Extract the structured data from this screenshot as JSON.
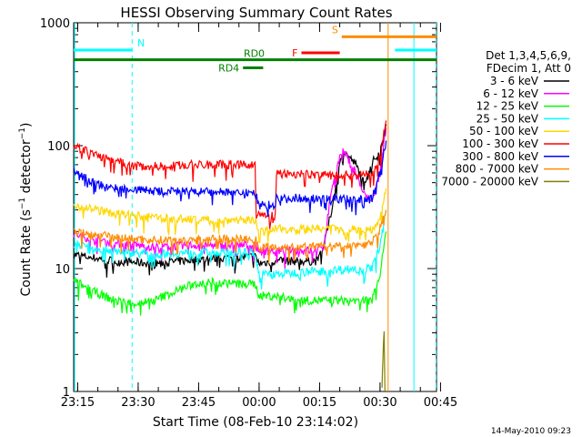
{
  "chart_data": {
    "type": "line",
    "title": "HESSI Observing Summary Count Rates",
    "xlabel": "Start Time (08-Feb-10 23:14:02)",
    "ylabel": "Count Rate (s⁻¹ detector⁻¹)",
    "ylabel_main": "Count Rate (s",
    "ylabel_sup1": "−1",
    "ylabel_mid": " detector",
    "ylabel_sup2": "−1",
    "ylabel_end": ")",
    "yscale": "log",
    "ylim": [
      1,
      1000
    ],
    "xlim_min": [
      0,
      90
    ],
    "x_ticks": [
      {
        "m": 1,
        "label": "23:15"
      },
      {
        "m": 16,
        "label": "23:30"
      },
      {
        "m": 31,
        "label": "23:45"
      },
      {
        "m": 46,
        "label": "00:00"
      },
      {
        "m": 61,
        "label": "00:15"
      },
      {
        "m": 76,
        "label": "00:30"
      },
      {
        "m": 91,
        "label": "00:45"
      }
    ],
    "y_ticks": [
      {
        "v": 1,
        "label": "1"
      },
      {
        "v": 10,
        "label": "10"
      },
      {
        "v": 100,
        "label": "100"
      },
      {
        "v": 1000,
        "label": "1000"
      }
    ],
    "legend_title": [
      "Det 1,3,4,5,6,9,",
      "FDecim 1, Att 0"
    ],
    "legend_position": "right",
    "timestamp": "14-May-2010 09:23",
    "series": [
      {
        "name": "3 - 6 keV",
        "color": "#000000",
        "points": [
          [
            0,
            13
          ],
          [
            10,
            11.5
          ],
          [
            20,
            11
          ],
          [
            30,
            11.8
          ],
          [
            43,
            12.5
          ],
          [
            45,
            12.5
          ],
          [
            46,
            11
          ],
          [
            50,
            11.5
          ],
          [
            60,
            11.5
          ],
          [
            62,
            15
          ],
          [
            64,
            30
          ],
          [
            66,
            70
          ],
          [
            67,
            90
          ],
          [
            70,
            70
          ],
          [
            72,
            50
          ],
          [
            74,
            72
          ],
          [
            76,
            90
          ],
          [
            77.5,
            150
          ]
        ]
      },
      {
        "name": "6 - 12 keV",
        "color": "#ff00ff",
        "points": [
          [
            0,
            19
          ],
          [
            10,
            16
          ],
          [
            20,
            15
          ],
          [
            30,
            15.5
          ],
          [
            43,
            15.5
          ],
          [
            45,
            15.5
          ],
          [
            46,
            14
          ],
          [
            50,
            14
          ],
          [
            60,
            14
          ],
          [
            62,
            15
          ],
          [
            64,
            45
          ],
          [
            66,
            80
          ],
          [
            67,
            90
          ],
          [
            70,
            60
          ],
          [
            72,
            40
          ],
          [
            74,
            35
          ],
          [
            76,
            60
          ],
          [
            77.5,
            140
          ]
        ]
      },
      {
        "name": "12 - 25 keV",
        "color": "#00ff00",
        "points": [
          [
            0,
            8
          ],
          [
            5,
            6.5
          ],
          [
            10,
            5.5
          ],
          [
            15,
            5.2
          ],
          [
            20,
            5.5
          ],
          [
            25,
            6.5
          ],
          [
            30,
            7.5
          ],
          [
            35,
            7.8
          ],
          [
            40,
            7.5
          ],
          [
            43,
            7.5
          ],
          [
            45,
            7.5
          ],
          [
            46,
            6
          ],
          [
            50,
            6
          ],
          [
            55,
            5.5
          ],
          [
            60,
            5.5
          ],
          [
            65,
            5.5
          ],
          [
            70,
            5.5
          ],
          [
            74,
            5.5
          ],
          [
            76,
            9
          ],
          [
            77.5,
            20
          ]
        ]
      },
      {
        "name": "25 - 50 keV",
        "color": "#00ffff",
        "points": [
          [
            0,
            16
          ],
          [
            10,
            14
          ],
          [
            20,
            13
          ],
          [
            30,
            13.5
          ],
          [
            43,
            13.5
          ],
          [
            45,
            13.5
          ],
          [
            46,
            9
          ],
          [
            50,
            9
          ],
          [
            60,
            9.5
          ],
          [
            70,
            10
          ],
          [
            74,
            10
          ],
          [
            76,
            15
          ],
          [
            77.5,
            30
          ]
        ]
      },
      {
        "name": "50 - 100 keV",
        "color": "#ffd700",
        "points": [
          [
            0,
            33
          ],
          [
            10,
            28
          ],
          [
            20,
            26
          ],
          [
            30,
            25
          ],
          [
            43,
            25
          ],
          [
            45,
            25
          ],
          [
            46,
            20
          ],
          [
            50,
            21
          ],
          [
            60,
            21
          ],
          [
            70,
            21
          ],
          [
            74,
            21
          ],
          [
            76,
            26
          ],
          [
            77.5,
            45
          ]
        ]
      },
      {
        "name": "100 - 300 keV",
        "color": "#ff0000",
        "points": [
          [
            0,
            100
          ],
          [
            5,
            85
          ],
          [
            10,
            75
          ],
          [
            15,
            68
          ],
          [
            20,
            68
          ],
          [
            30,
            70
          ],
          [
            40,
            70
          ],
          [
            45,
            70
          ],
          [
            45.3,
            27
          ],
          [
            50,
            27
          ],
          [
            50.3,
            60
          ],
          [
            60,
            58
          ],
          [
            70,
            58
          ],
          [
            74,
            58
          ],
          [
            76,
            80
          ],
          [
            77.5,
            160
          ]
        ]
      },
      {
        "name": "300 - 800 keV",
        "color": "#0000ff",
        "points": [
          [
            0,
            62
          ],
          [
            5,
            50
          ],
          [
            10,
            45
          ],
          [
            20,
            43
          ],
          [
            30,
            42
          ],
          [
            40,
            42
          ],
          [
            45,
            41
          ],
          [
            46,
            33
          ],
          [
            50,
            33
          ],
          [
            50.3,
            38
          ],
          [
            60,
            37
          ],
          [
            70,
            37
          ],
          [
            74,
            37
          ],
          [
            76,
            60
          ],
          [
            77.5,
            110
          ]
        ]
      },
      {
        "name": "800 - 7000 keV",
        "color": "#ff8c00",
        "points": [
          [
            0,
            20
          ],
          [
            10,
            18
          ],
          [
            20,
            17
          ],
          [
            30,
            17.3
          ],
          [
            43,
            17.5
          ],
          [
            45,
            17.5
          ],
          [
            46,
            15
          ],
          [
            50,
            15
          ],
          [
            60,
            15
          ],
          [
            70,
            15.5
          ],
          [
            74,
            16
          ],
          [
            76,
            22
          ],
          [
            77.5,
            30
          ]
        ]
      },
      {
        "name": "7000 - 20000 keV",
        "color": "#808000",
        "points": [
          [
            76.5,
            1
          ],
          [
            76.7,
            2.2
          ],
          [
            77,
            3
          ],
          [
            77.2,
            1
          ]
        ]
      }
    ],
    "annotations": {
      "saa_N_line": {
        "label": "N",
        "color": "#00ffff",
        "value": 600,
        "x_start": 0,
        "x_end": 14.5
      },
      "night_bars": [
        {
          "label": "",
          "color": "#00ffff",
          "value": 600,
          "x_start": 79.7,
          "x_end": 90
        }
      ],
      "dashed_lines": [
        {
          "m": 14.5,
          "color": "#00ffff"
        },
        {
          "m": 89.9,
          "color": "#00ffff"
        }
      ],
      "solid_lines": [
        {
          "m": 78,
          "color": "#ff8c00"
        },
        {
          "m": 84.4,
          "color": "#00ffff"
        }
      ],
      "rd0": {
        "label": "RD0",
        "color": "#008000",
        "value": 500,
        "x_start": 0,
        "x_end": 90
      },
      "rd4": {
        "label": "RD4",
        "color": "#008000",
        "value": 430,
        "x_start": 42,
        "x_end": 47
      },
      "flare": {
        "label": "F",
        "color": "#ff0000",
        "value": 570,
        "x_start": 56.5,
        "x_end": 66
      },
      "saa_S": {
        "label": "S",
        "color": "#ff8c00",
        "value": 770,
        "x_start": 66.5,
        "x_end": 90
      }
    }
  }
}
